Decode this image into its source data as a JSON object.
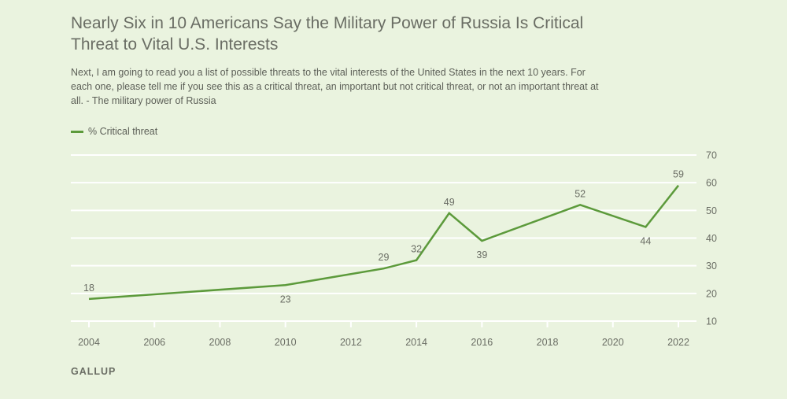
{
  "header": {
    "title": "Nearly Six in 10 Americans Say the Military Power of Russia Is Critical Threat to Vital U.S. Interests",
    "subtitle": "Next, I am going to read you a list of possible threats to the vital interests of the United States in the next 10 years. For each one, please tell me if you see this as a critical threat, an important but not critical threat, or not an important threat at all. - The military power of Russia"
  },
  "footer": {
    "brand": "GALLUP"
  },
  "colors": {
    "line": "#5c9a3b",
    "grid": "#ffffff",
    "text": "#6a6d64",
    "background": "#eaf3df"
  },
  "chart_data": {
    "type": "line",
    "title": "Nearly Six in 10 Americans Say the Military Power of Russia Is Critical Threat to Vital U.S. Interests",
    "xlabel": "",
    "ylabel": "",
    "xlim": [
      2004,
      2022
    ],
    "ylim": [
      10,
      70
    ],
    "x_ticks": [
      2004,
      2006,
      2008,
      2010,
      2012,
      2014,
      2016,
      2018,
      2020,
      2022
    ],
    "y_ticks": [
      10,
      20,
      30,
      40,
      50,
      60,
      70
    ],
    "y_axis_side": "right",
    "grid": true,
    "legend": {
      "placement": "top-left",
      "entries": [
        "% Critical threat"
      ]
    },
    "series": [
      {
        "name": "% Critical threat",
        "x": [
          2004,
          2010,
          2013,
          2014,
          2015,
          2016,
          2019,
          2021,
          2022
        ],
        "values": [
          18,
          23,
          29,
          32,
          49,
          39,
          52,
          44,
          59
        ],
        "label_position": [
          "above",
          "below",
          "above",
          "above",
          "above",
          "below",
          "above",
          "below",
          "above"
        ]
      }
    ]
  }
}
